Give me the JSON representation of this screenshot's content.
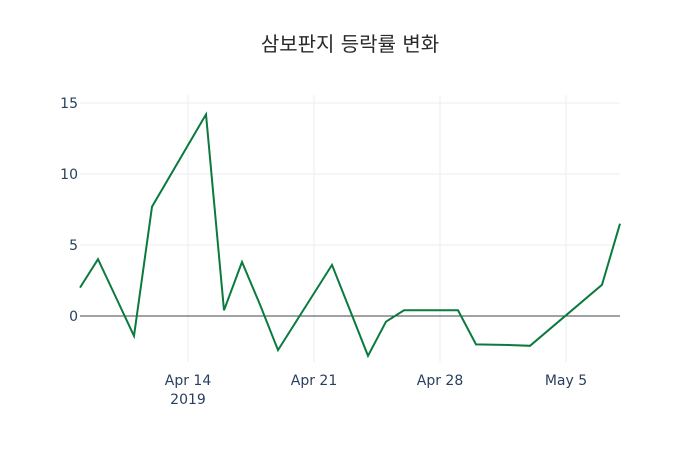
{
  "chart_data": {
    "type": "line",
    "title": "삼보판지 등락률 변화",
    "xlabel": "",
    "ylabel": "",
    "x": [
      "2019-04-08",
      "2019-04-09",
      "2019-04-10",
      "2019-04-11",
      "2019-04-12",
      "2019-04-15",
      "2019-04-16",
      "2019-04-17",
      "2019-04-18",
      "2019-04-19",
      "2019-04-22",
      "2019-04-23",
      "2019-04-24",
      "2019-04-25",
      "2019-04-26",
      "2019-04-29",
      "2019-04-30",
      "2019-05-02",
      "2019-05-03",
      "2019-05-07",
      "2019-05-08"
    ],
    "series": [
      {
        "name": "등락률",
        "color": "#0b7a3e",
        "values": [
          2.0,
          4.0,
          1.3,
          -1.4,
          7.7,
          14.2,
          0.4,
          3.8,
          0.8,
          -2.4,
          3.6,
          0.4,
          -2.8,
          -0.4,
          0.4,
          0.4,
          -2.0,
          -2.05,
          -2.1,
          2.2,
          6.5
        ]
      }
    ],
    "x_ticks": [
      {
        "label": "Apr 14",
        "sublabel": "2019"
      },
      {
        "label": "Apr 21",
        "sublabel": ""
      },
      {
        "label": "Apr 28",
        "sublabel": ""
      },
      {
        "label": "May 5",
        "sublabel": ""
      }
    ],
    "y_ticks": [
      "0",
      "5",
      "10",
      "15"
    ],
    "ylim": [
      -3.2,
      15.2
    ],
    "xlim": [
      "2019-04-08",
      "2019-05-08"
    ],
    "grid": true,
    "zeroline": true,
    "legend": "none"
  }
}
